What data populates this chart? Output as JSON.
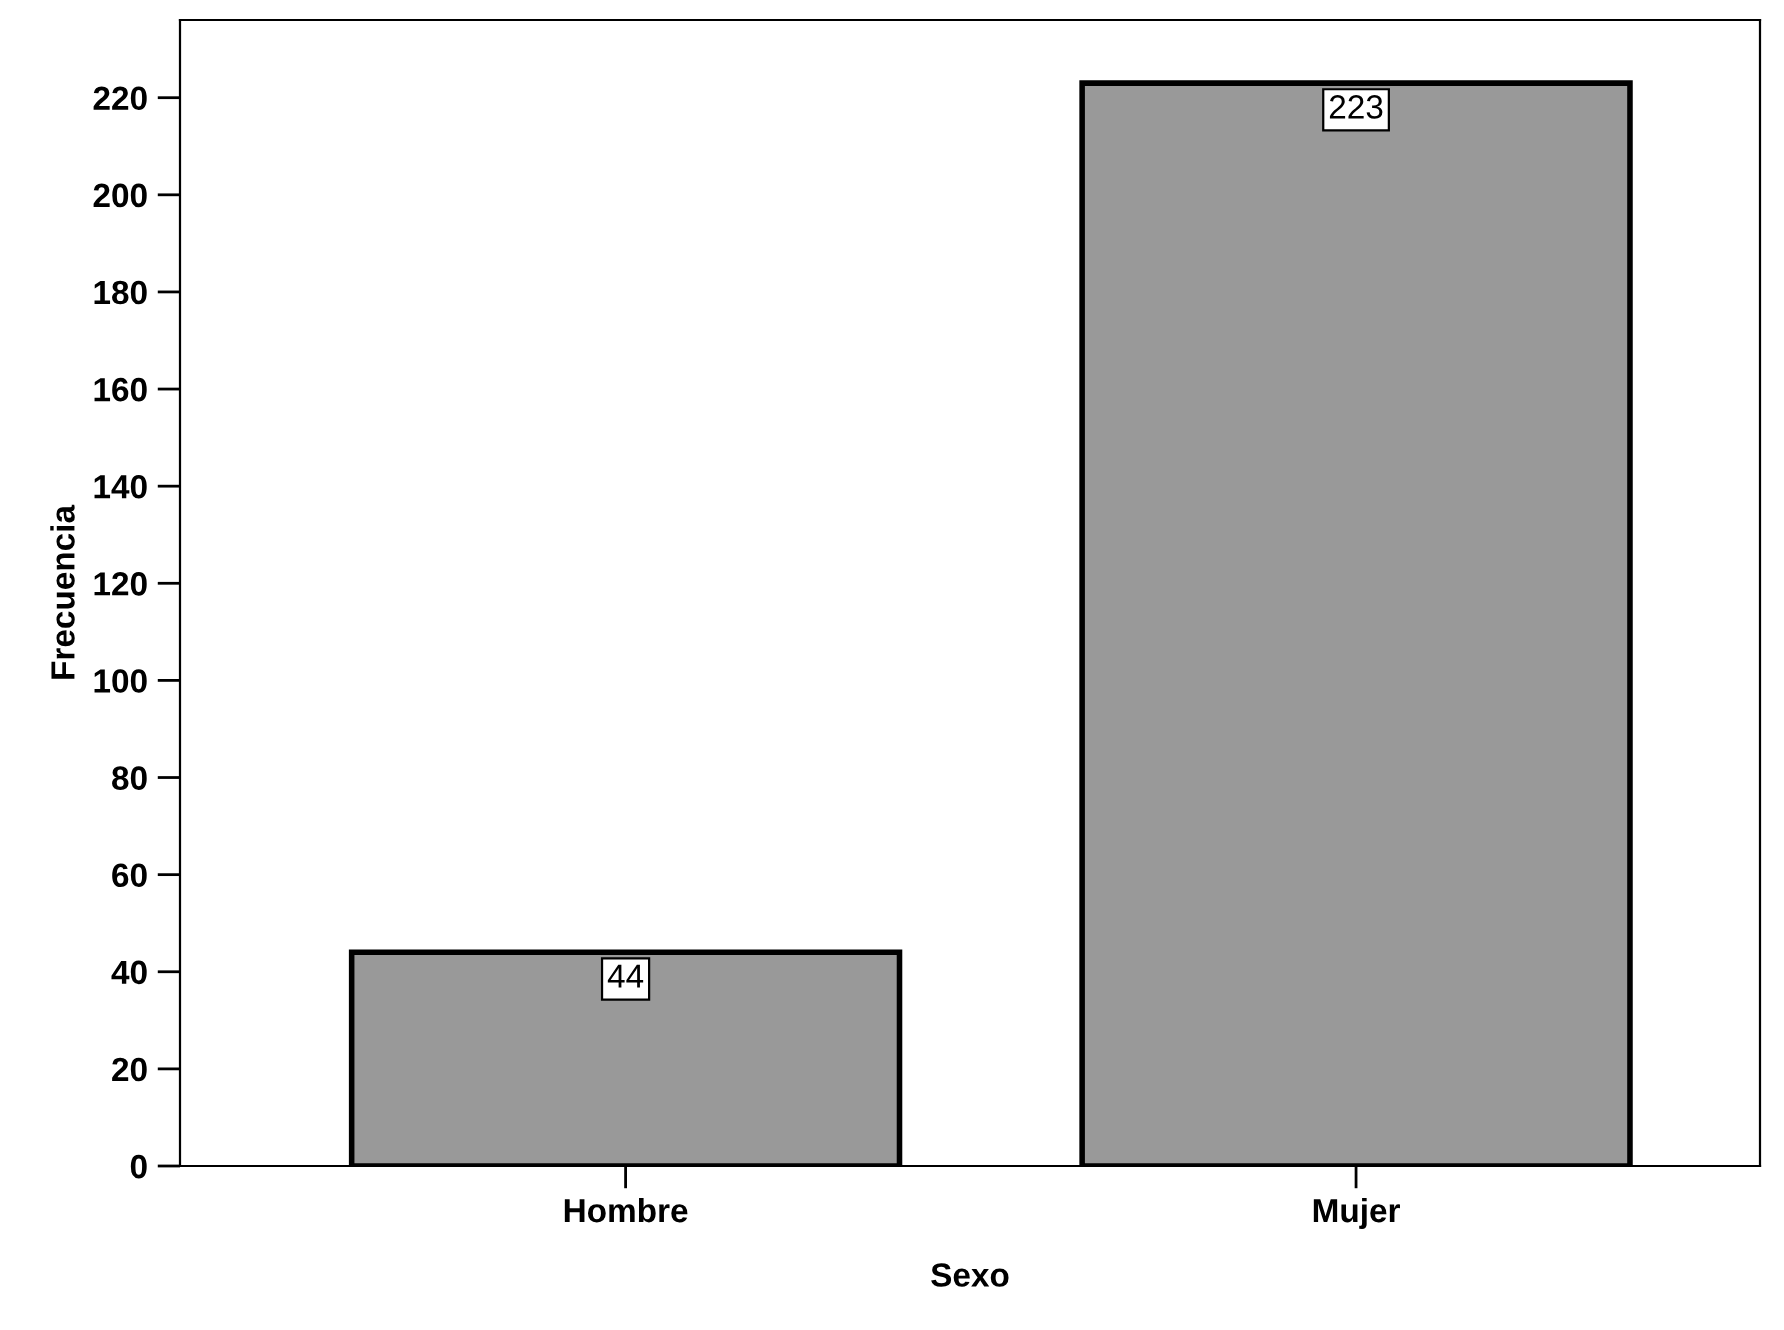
{
  "chart_data": {
    "type": "bar",
    "xlabel": "Sexo",
    "ylabel": "Frecuencia",
    "categories": [
      "Hombre",
      "Mujer"
    ],
    "values": [
      44,
      223
    ],
    "color": "#999999",
    "ylim": [
      0,
      236
    ],
    "yticks": [
      0,
      20,
      40,
      60,
      80,
      100,
      120,
      140,
      160,
      180,
      200,
      220
    ],
    "data_labels": true,
    "grid": false,
    "legend": false
  }
}
